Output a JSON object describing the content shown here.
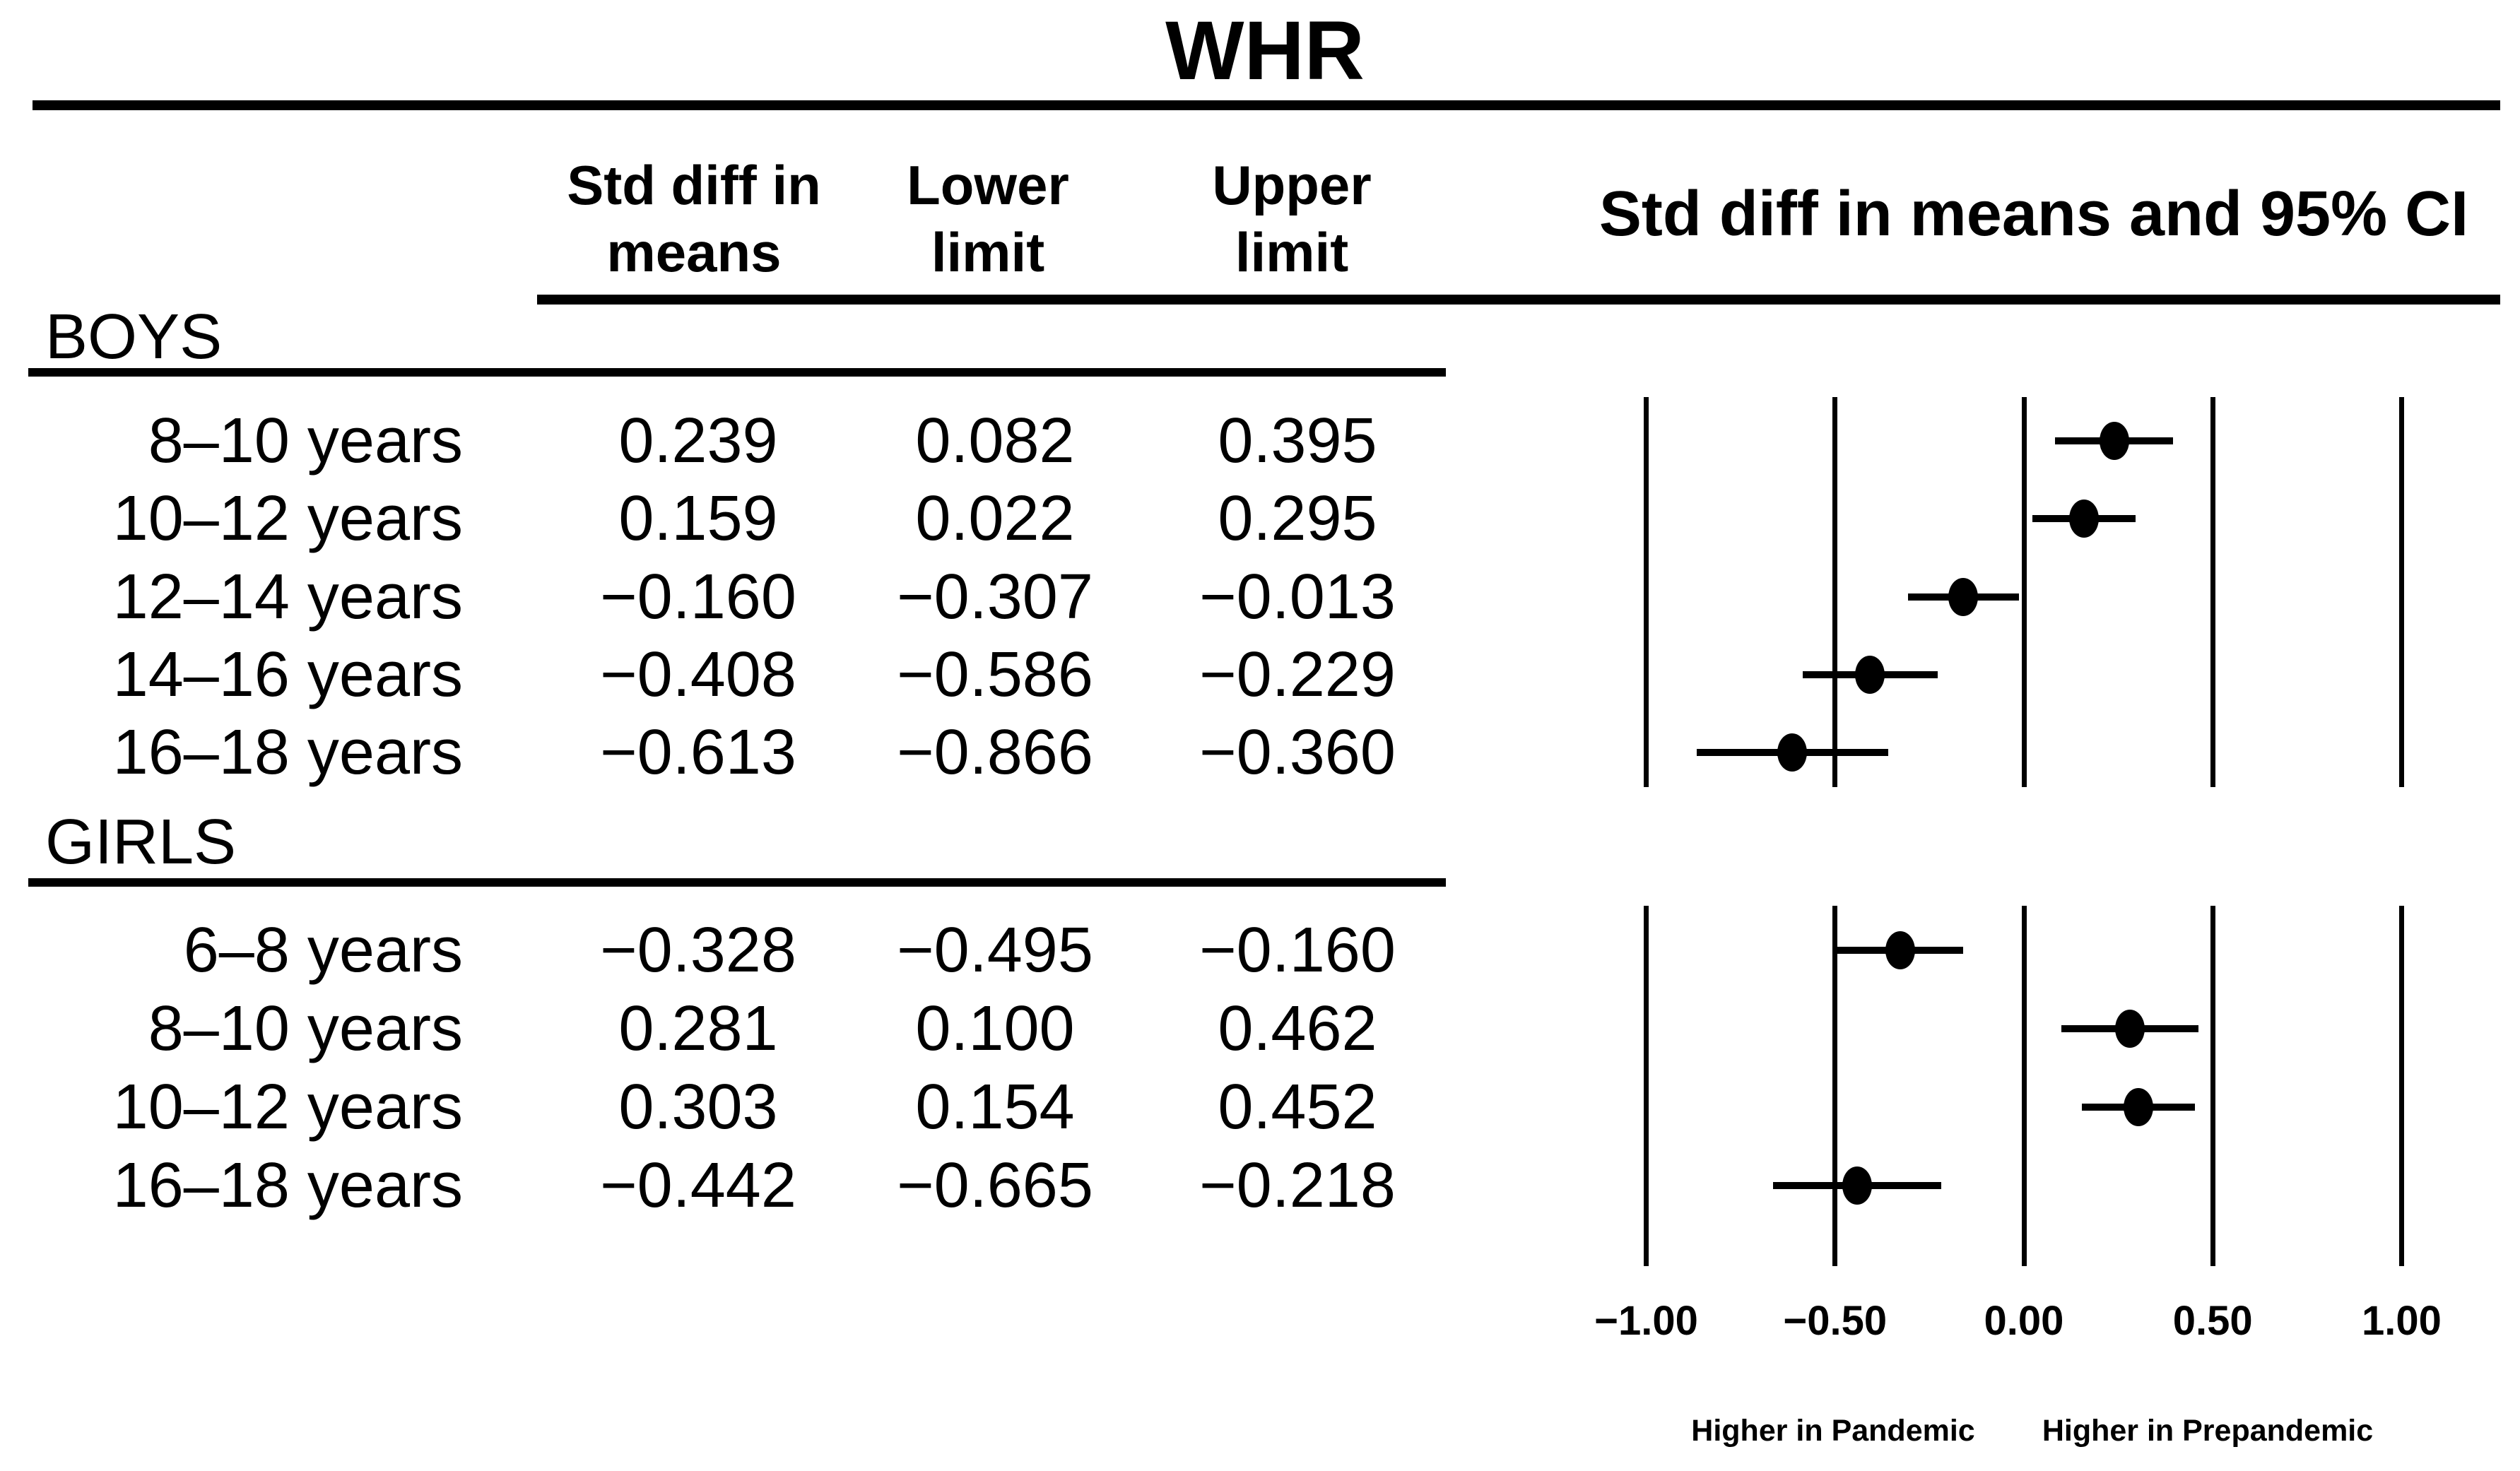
{
  "title": "WHR",
  "table": {
    "columns": [
      {
        "line1": "Std diff in",
        "line2": "means"
      },
      {
        "line1": "Lower",
        "line2": "limit"
      },
      {
        "line1": "Upper",
        "line2": "limit"
      }
    ],
    "groups": [
      {
        "label": "BOYS",
        "rows": [
          {
            "age": "8–10 years",
            "mean": "0.239",
            "lower": "0.082",
            "upper": "0.395"
          },
          {
            "age": "10–12 years",
            "mean": "0.159",
            "lower": "0.022",
            "upper": "0.295"
          },
          {
            "age": "12–14 years",
            "mean": "−0.160",
            "lower": "−0.307",
            "upper": "−0.013"
          },
          {
            "age": "14–16 years",
            "mean": "−0.408",
            "lower": "−0.586",
            "upper": "−0.229"
          },
          {
            "age": "16–18 years",
            "mean": "−0.613",
            "lower": "−0.866",
            "upper": "−0.360"
          }
        ]
      },
      {
        "label": "GIRLS",
        "rows": [
          {
            "age": "6–8 years",
            "mean": "−0.328",
            "lower": "−0.495",
            "upper": "−0.160"
          },
          {
            "age": "8–10 years",
            "mean": "0.281",
            "lower": "0.100",
            "upper": "0.462"
          },
          {
            "age": "10–12 years",
            "mean": "0.303",
            "lower": "0.154",
            "upper": "0.452"
          },
          {
            "age": "16–18 years",
            "mean": "−0.442",
            "lower": "−0.665",
            "upper": "−0.218"
          }
        ]
      }
    ]
  },
  "plot": {
    "header": "Std diff in means and 95% CI",
    "ticks": [
      "−1.00",
      "−0.50",
      "0.00",
      "0.50",
      "1.00"
    ],
    "tick_values": [
      -1.0,
      -0.5,
      0.0,
      0.5,
      1.0
    ],
    "footer_left": "Higher in Pandemic",
    "footer_right": "Higher in Prepandemic"
  },
  "colors": {
    "ink": "#000000",
    "background": "#ffffff"
  },
  "chart_data": {
    "type": "forest",
    "title": "WHR",
    "value_label": "Std diff in means and 95% CI",
    "xlim": [
      -1.0,
      1.0
    ],
    "xticks": [
      -1.0,
      -0.5,
      0.0,
      0.5,
      1.0
    ],
    "grid": "vertical-lines-at-ticks",
    "groups": [
      {
        "name": "BOYS",
        "rows": [
          {
            "category": "8–10 years",
            "mean": 0.239,
            "lower": 0.082,
            "upper": 0.395
          },
          {
            "category": "10–12 years",
            "mean": 0.159,
            "lower": 0.022,
            "upper": 0.295
          },
          {
            "category": "12–14 years",
            "mean": -0.16,
            "lower": -0.307,
            "upper": -0.013
          },
          {
            "category": "14–16 years",
            "mean": -0.408,
            "lower": -0.586,
            "upper": -0.229
          },
          {
            "category": "16–18 years",
            "mean": -0.613,
            "lower": -0.866,
            "upper": -0.36
          }
        ]
      },
      {
        "name": "GIRLS",
        "rows": [
          {
            "category": "6–8 years",
            "mean": -0.328,
            "lower": -0.495,
            "upper": -0.16
          },
          {
            "category": "8–10 years",
            "mean": 0.281,
            "lower": 0.1,
            "upper": 0.462
          },
          {
            "category": "10–12 years",
            "mean": 0.303,
            "lower": 0.154,
            "upper": 0.452
          },
          {
            "category": "16–18 years",
            "mean": -0.442,
            "lower": -0.665,
            "upper": -0.218
          }
        ]
      }
    ],
    "annotations": {
      "left_of_zero": "Higher in Pandemic",
      "right_of_zero": "Higher in Prepandemic"
    }
  }
}
